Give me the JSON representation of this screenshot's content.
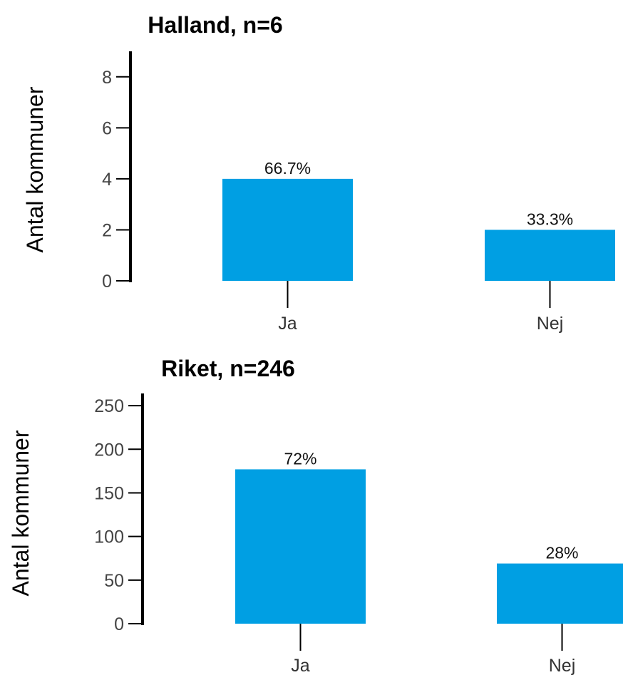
{
  "colors": {
    "bar": "#009FE3",
    "axis": "#000000",
    "tick_text": "#444444"
  },
  "chart_data": [
    {
      "type": "bar",
      "title": "Halland, n=6",
      "ylabel": "Antal kommuner",
      "xlabel": "",
      "categories": [
        "Ja",
        "Nej"
      ],
      "values": [
        4,
        2
      ],
      "data_labels": [
        "66.7%",
        "33.3%"
      ],
      "yticks": [
        0,
        2,
        4,
        6,
        8
      ],
      "ylim": [
        0,
        9
      ],
      "grid": false,
      "legend": "none"
    },
    {
      "type": "bar",
      "title": "Riket, n=246",
      "ylabel": "Antal kommuner",
      "xlabel": "",
      "categories": [
        "Ja",
        "Nej"
      ],
      "values": [
        177,
        69
      ],
      "data_labels": [
        "72%",
        "28%"
      ],
      "yticks": [
        0,
        50,
        100,
        150,
        200,
        250
      ],
      "ylim": [
        0,
        264
      ],
      "grid": false,
      "legend": "none"
    }
  ]
}
